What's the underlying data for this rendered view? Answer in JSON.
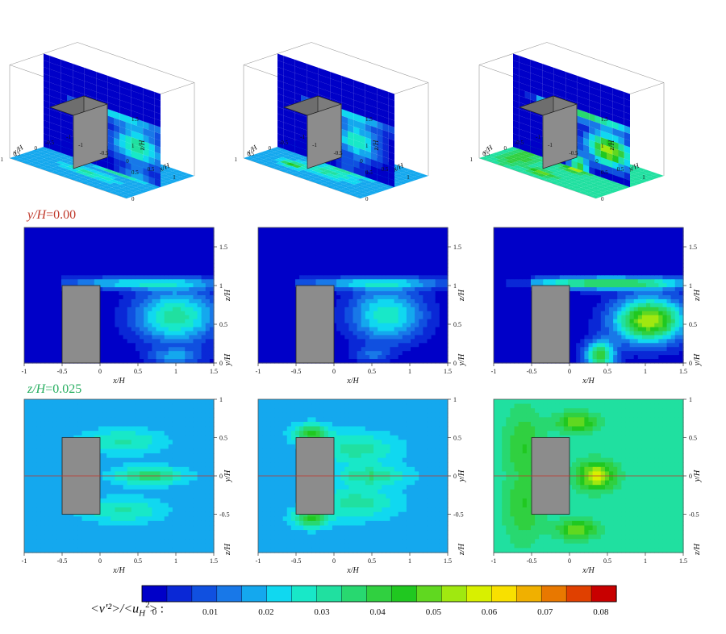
{
  "labels": {
    "row2_var": "y/H",
    "row2_val": "=0.00",
    "row3_var": "z/H",
    "row3_val": "=0.025",
    "colorbar_quantity": "<v'²>/<u",
    "colorbar_sub": "H",
    "colorbar_sup": "2",
    "colorbar_tail": "> :"
  },
  "colors": {
    "red_label": "#c0392b",
    "green_label": "#27ae60",
    "body": "#8c8c8c",
    "centerline": "#c0392b"
  },
  "chart_data": [
    {
      "type": "heatmap",
      "id": "row1-3d",
      "title": "",
      "panels": 3,
      "axes": {
        "x": {
          "label": "x/H",
          "ticks": [
            "-1",
            "-0.5",
            "0",
            "0.5",
            "1"
          ]
        },
        "y": {
          "label": "y/H",
          "ticks": [
            "-1",
            "-0.5",
            "0",
            "0.5",
            "1"
          ]
        },
        "z": {
          "label": "z/H",
          "ticks": [
            "0",
            "0.5",
            "1",
            "1.5"
          ]
        }
      }
    },
    {
      "type": "heatmap",
      "id": "row2-xz",
      "slice": "y/H=0.00",
      "panels": 3,
      "xlabel": "x/H",
      "ylabel": "z/H",
      "x_ticks": [
        "-1",
        "-0.5",
        "0",
        "0.5",
        "1",
        "1.5"
      ],
      "y_ticks": [
        "0",
        "0.5",
        "1",
        "1.5"
      ],
      "right_axis_extra": "y/H",
      "xlim": [
        -1,
        1.5
      ],
      "ylim": [
        0,
        1.75
      ],
      "max_levels": [
        0.045,
        0.04,
        0.075
      ]
    },
    {
      "type": "heatmap",
      "id": "row3-xy",
      "slice": "z/H=0.025",
      "panels": 3,
      "xlabel": "x/H",
      "ylabel": "y/H",
      "x_ticks": [
        "-1",
        "-0.5",
        "0",
        "0.5",
        "1",
        "1.5"
      ],
      "y_ticks": [
        "-0.5",
        "0",
        "0.5",
        "1"
      ],
      "right_axis_extra": "z/H",
      "xlim": [
        -1,
        1.5
      ],
      "ylim": [
        -1,
        1
      ],
      "max_levels": [
        0.04,
        0.045,
        0.06
      ]
    },
    {
      "type": "colorbar",
      "id": "colorbar",
      "range": [
        0,
        0.085
      ],
      "tick_labels": [
        "0",
        "0.01",
        "0.02",
        "0.03",
        "0.04",
        "0.05",
        "0.06",
        "0.07",
        "0.08"
      ],
      "colors": [
        "#0000c8",
        "#0a28d6",
        "#1050e0",
        "#1878e8",
        "#14a8ee",
        "#10d8f0",
        "#18e8c8",
        "#20e0a0",
        "#28d870",
        "#30d040",
        "#20c820",
        "#60d820",
        "#a0e810",
        "#d8f000",
        "#f8e000",
        "#f0b000",
        "#e87800",
        "#e04000",
        "#c80000"
      ]
    }
  ]
}
